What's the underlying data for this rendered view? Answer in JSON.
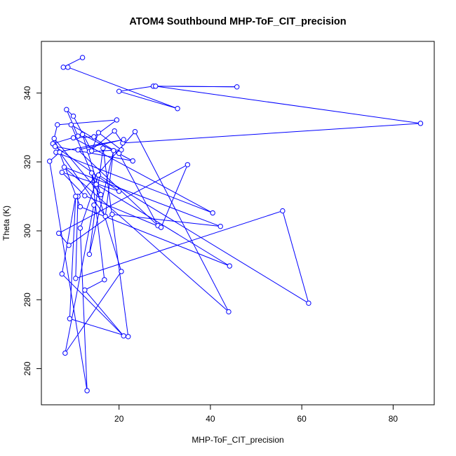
{
  "chart_data": {
    "type": "line",
    "title": "ATOM4 Southbound MHP-ToF_CIT_precision",
    "xlabel": "MHP-ToF_CIT_precision",
    "ylabel": "Theta (K)",
    "xlim": [
      3.0,
      89.0
    ],
    "ylim": [
      249.5,
      355.0
    ],
    "xticks": [
      20,
      40,
      60,
      80
    ],
    "yticks": [
      260,
      280,
      300,
      320,
      340
    ],
    "grid": false,
    "legend": "none",
    "series_color": "#0000ff",
    "marker": "open-circle",
    "series": [
      {
        "x": [
          12.0,
          7.8,
          8.8,
          32.8,
          20.0,
          27.5,
          45.8,
          28.0,
          86.0,
          20.8,
          19.0,
          13.5,
          20.5,
          15.5,
          14.0,
          10.0,
          8.5,
          11.0,
          5.5,
          6.5,
          19.5,
          14.5,
          10.0,
          40.5,
          6.2,
          21.0,
          11.0,
          28.5,
          20.0,
          9.5,
          15.0,
          44.2,
          11.5,
          5.8,
          16.0,
          12.0,
          23.0,
          6.0,
          20.0,
          7.5,
          12.5,
          29.2,
          35.0,
          6.8,
          9.0,
          18.5,
          42.2,
          8.0,
          44.0,
          23.5,
          11.0,
          10.5,
          55.8,
          61.5,
          15.5,
          11.5,
          13.0,
          4.8,
          7.0,
          17.0,
          18.8,
          13.5,
          16.5,
          22.0,
          9.2,
          10.5,
          7.5,
          21.0,
          12.5,
          16.8,
          14.0,
          20.5,
          8.2,
          14.5
        ],
        "y": [
          350.3,
          347.5,
          347.5,
          335.5,
          340.5,
          342.0,
          341.8,
          342.0,
          331.2,
          325.5,
          329.0,
          323.0,
          323.5,
          328.5,
          323.2,
          333.3,
          335.2,
          327.5,
          325.3,
          330.8,
          332.2,
          327.3,
          327.0,
          305.2,
          322.8,
          326.5,
          323.5,
          301.5,
          322.5,
          330.8,
          313.5,
          289.8,
          307.0,
          326.8,
          310.5,
          328.0,
          320.3,
          324.5,
          311.5,
          317.0,
          310.2,
          301.0,
          319.2,
          299.3,
          295.8,
          304.8,
          301.3,
          318.5,
          276.5,
          328.8,
          310.0,
          286.2,
          305.8,
          279.0,
          316.2,
          300.8,
          253.6,
          320.2,
          322.8,
          304.2,
          323.3,
          293.2,
          324.0,
          269.3,
          274.5,
          310.0,
          287.5,
          269.5,
          282.8,
          285.8,
          316.8,
          288.2,
          264.5,
          307.5
        ]
      }
    ]
  }
}
